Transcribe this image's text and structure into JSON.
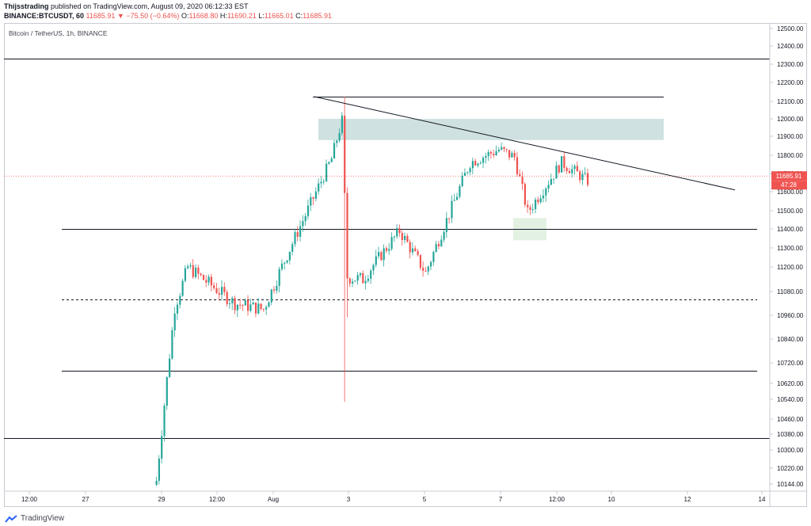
{
  "header": {
    "author": "Thijsstrading",
    "published_text": "published on TradingView.com, August 09, 2020 06:12:33 EST",
    "symbol": "BINANCE:BTCUSDT, 60",
    "last": "11685.91",
    "change_arrow": "▼",
    "change": "−75.50 (−0.64%)",
    "o_label": "O:",
    "o_value": "11668.80",
    "h_label": "H:",
    "h_value": "11690.21",
    "l_label": "L:",
    "l_value": "11665.01",
    "c_label": "C:",
    "c_value": "11685.91"
  },
  "footer": {
    "brand": "TradingView"
  },
  "colors": {
    "up": "#26a69a",
    "down": "#ef5350",
    "zone_resistance": "#cfe1e1",
    "zone_support": "#e3f1e3",
    "grid": "#c8cbd3",
    "line": "#131722"
  },
  "chart_data": {
    "type": "candlestick",
    "title": "Bitcoin / TetherUS, 1h, BINANCE",
    "y_ticks": [
      "12500.00",
      "12400.00",
      "12300.00",
      "12200.00",
      "12100.00",
      "12000.00",
      "11900.00",
      "11800.00",
      "11700.00",
      "11600.00",
      "11500.00",
      "11400.00",
      "11300.00",
      "11200.00",
      "11080.00",
      "10960.00",
      "10840.00",
      "10720.00",
      "10620.00",
      "10540.00",
      "10460.00",
      "10380.00",
      "10300.00",
      "10220.00",
      "10144.00"
    ],
    "x_ticks": [
      "12:00",
      "27",
      "29",
      "12:00",
      "Aug",
      "3",
      "5",
      "7",
      "12:00",
      "10",
      "12",
      "14"
    ],
    "last_price_label": "11685.91",
    "countdown_label": "47:28",
    "horizontal_levels": [
      {
        "price": 12330,
        "style": "solid"
      },
      {
        "price": 12125,
        "style": "solid"
      },
      {
        "price": 11400,
        "style": "solid"
      },
      {
        "price": 11040,
        "style": "dashed"
      },
      {
        "price": 10680,
        "style": "solid"
      },
      {
        "price": 10360,
        "style": "solid"
      }
    ],
    "trendline": {
      "from": {
        "time_index": 97,
        "price": 12125
      },
      "to": {
        "time_index": 237,
        "price": 11610
      }
    },
    "zones": [
      {
        "kind": "resistance",
        "price_top": 12000,
        "price_bottom": 11880
      },
      {
        "kind": "support",
        "price_top": 11460,
        "price_bottom": 11340
      }
    ],
    "key_points": [
      {
        "time_index": 25,
        "close": 10160
      },
      {
        "time_index": 32,
        "close": 11000
      },
      {
        "time_index": 37,
        "close": 11200
      },
      {
        "time_index": 55,
        "close": 11020
      },
      {
        "time_index": 66,
        "close": 10990
      },
      {
        "time_index": 92,
        "close": 11780
      },
      {
        "time_index": 96,
        "close": 11990
      },
      {
        "time_index": 98,
        "close": 11150
      },
      {
        "time_index": 104,
        "close": 11140
      },
      {
        "time_index": 118,
        "close": 11390
      },
      {
        "time_index": 128,
        "close": 11170
      },
      {
        "time_index": 145,
        "close": 11760
      },
      {
        "time_index": 156,
        "close": 11830
      },
      {
        "time_index": 162,
        "close": 11790
      },
      {
        "time_index": 167,
        "close": 11490
      },
      {
        "time_index": 180,
        "close": 11760
      },
      {
        "time_index": 190,
        "close": 11660
      }
    ]
  }
}
